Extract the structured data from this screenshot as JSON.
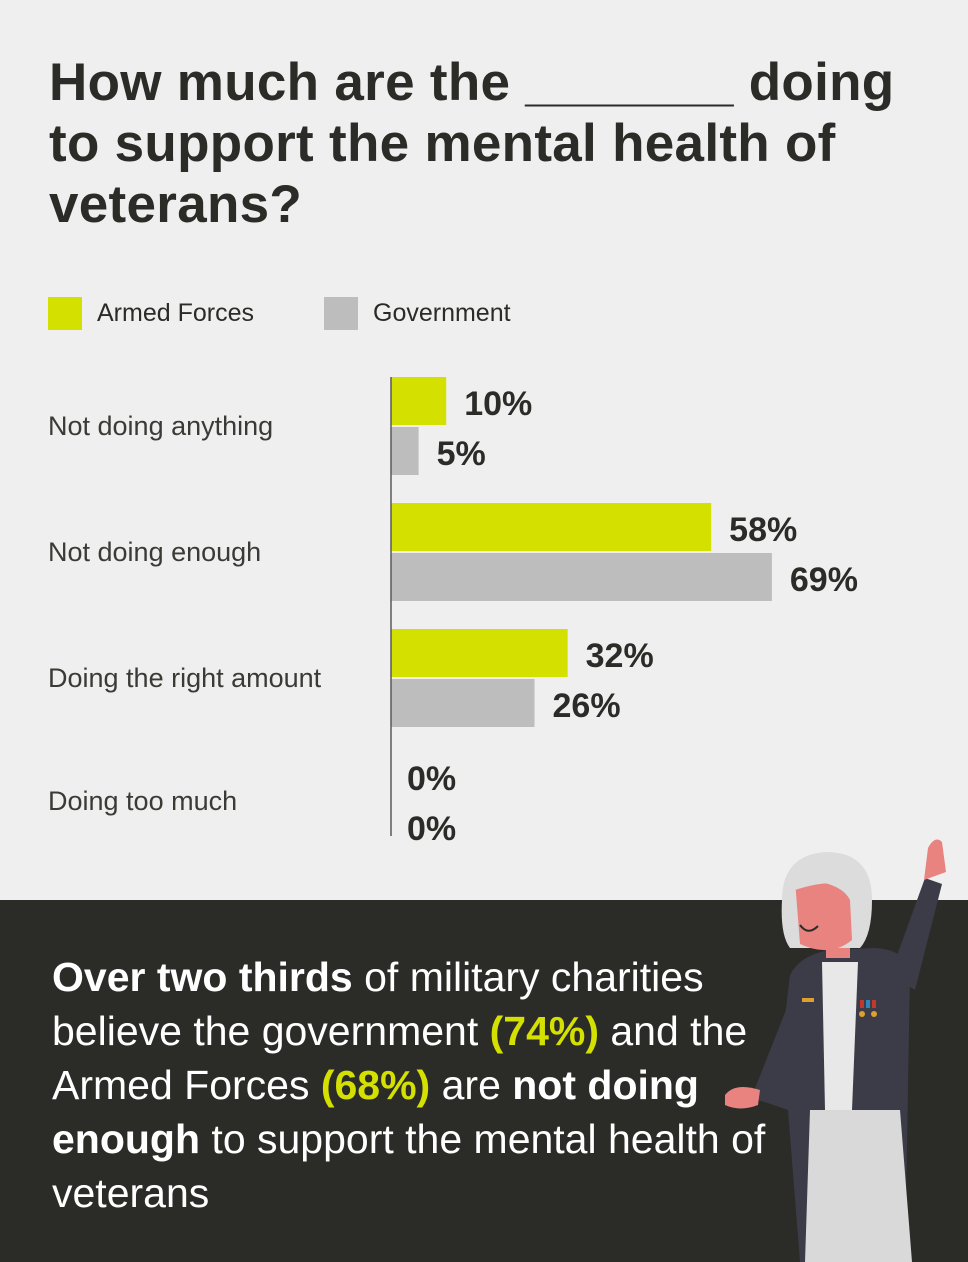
{
  "title": "How much are the _______ doing to support the mental health of veterans?",
  "colors": {
    "armed_forces": "#d4e000",
    "government": "#bdbdbd",
    "background": "#efefef",
    "dark_panel": "#2b2b27",
    "highlight": "#d4e000"
  },
  "chart_data": {
    "type": "bar",
    "orientation": "horizontal",
    "categories": [
      "Not doing anything",
      "Not doing enough",
      "Doing the right amount",
      "Doing too much"
    ],
    "series": [
      {
        "name": "Armed Forces",
        "values": [
          10,
          58,
          32,
          0
        ],
        "labels": [
          "10%",
          "58%",
          "32%",
          "0%"
        ]
      },
      {
        "name": "Government",
        "values": [
          5,
          69,
          26,
          0
        ],
        "labels": [
          "5%",
          "69%",
          "26%",
          "0%"
        ]
      }
    ],
    "unit": "%",
    "xlim": [
      0,
      100
    ],
    "legend_position": "top-left",
    "grid": false
  },
  "summary": {
    "s1": "Over two thirds",
    "s2": " of military charities believe the government ",
    "s3": "(74%)",
    "s4": " and the Armed Forces ",
    "s5": "(68%)",
    "s6": " are ",
    "s7": "not doing enough",
    "s8": " to support the mental health of veterans"
  }
}
